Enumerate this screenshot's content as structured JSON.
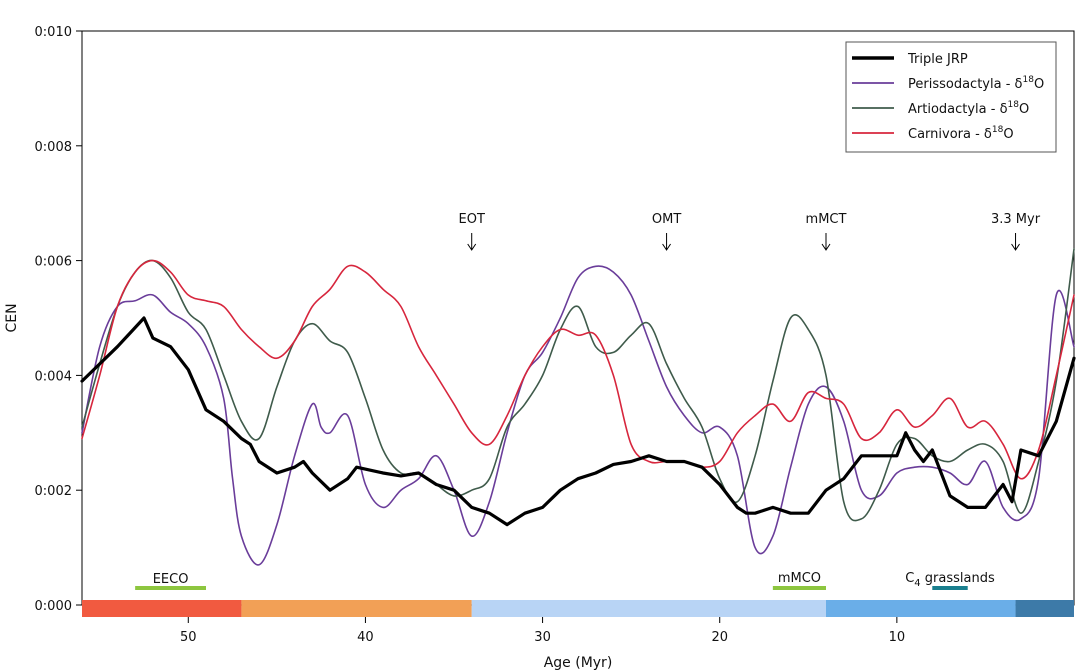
{
  "chart_data": {
    "type": "line",
    "xlabel": "Age (Myr)",
    "ylabel": "CEN",
    "xlim": [
      56,
      0
    ],
    "ylim": [
      0,
      0.01
    ],
    "x_ticks": [
      50,
      40,
      30,
      20,
      10
    ],
    "y_ticks": [
      {
        "value": 0.0,
        "label": "0:000"
      },
      {
        "value": 0.002,
        "label": "0:002"
      },
      {
        "value": 0.004,
        "label": "0:004"
      },
      {
        "value": 0.006,
        "label": "0:006"
      },
      {
        "value": 0.008,
        "label": "0:008"
      },
      {
        "value": 0.01,
        "label": "0:010"
      }
    ],
    "legend_position": "top-right",
    "series": [
      {
        "name": "Triple JRP",
        "color": "#000000",
        "x": [
          56,
          54,
          52.5,
          52,
          51,
          50,
          49,
          48,
          47,
          46.5,
          46,
          45,
          44,
          43.5,
          43,
          42,
          41,
          40.5,
          39,
          38,
          37,
          36,
          35,
          34,
          33.5,
          33,
          32,
          31,
          30,
          29,
          28,
          27,
          26,
          25,
          24,
          23,
          22,
          21,
          20,
          19,
          18.5,
          18,
          17,
          16,
          15,
          14,
          13,
          12,
          11,
          10,
          9.5,
          9,
          8.5,
          8,
          7,
          6,
          5,
          4,
          3.5,
          3,
          2,
          1,
          0
        ],
        "y": [
          0.0039,
          0.0045,
          0.005,
          0.00465,
          0.0045,
          0.0041,
          0.0034,
          0.0032,
          0.0029,
          0.0028,
          0.0025,
          0.0023,
          0.0024,
          0.0025,
          0.0023,
          0.002,
          0.0022,
          0.0024,
          0.0023,
          0.00225,
          0.0023,
          0.0021,
          0.002,
          0.0017,
          0.00165,
          0.0016,
          0.0014,
          0.0016,
          0.0017,
          0.002,
          0.0022,
          0.0023,
          0.00245,
          0.0025,
          0.0026,
          0.0025,
          0.0025,
          0.0024,
          0.0021,
          0.0017,
          0.0016,
          0.0016,
          0.0017,
          0.0016,
          0.0016,
          0.002,
          0.0022,
          0.0026,
          0.0026,
          0.0026,
          0.003,
          0.0027,
          0.0025,
          0.0027,
          0.0019,
          0.0017,
          0.0017,
          0.0021,
          0.0018,
          0.0027,
          0.0026,
          0.0032,
          0.0043
        ]
      },
      {
        "name": "Perissodactyla - δ18O",
        "color": "#6a3d9a",
        "x": [
          56,
          55,
          54,
          53,
          52,
          51,
          50,
          49,
          48,
          47.5,
          47,
          46,
          45,
          44,
          43,
          42.5,
          42,
          41,
          40,
          39,
          38,
          37,
          36,
          35,
          34,
          33,
          32,
          31,
          30,
          29,
          28,
          27,
          26,
          25,
          24,
          23,
          22,
          21,
          20,
          19,
          18,
          17,
          16,
          15,
          14,
          13,
          12,
          11,
          10,
          9,
          8,
          7,
          6,
          5,
          4,
          3,
          2,
          1,
          0
        ],
        "y": [
          0.003,
          0.0045,
          0.0052,
          0.0053,
          0.0054,
          0.0051,
          0.0049,
          0.0045,
          0.0036,
          0.0022,
          0.0012,
          0.0007,
          0.0014,
          0.0026,
          0.0035,
          0.0031,
          0.003,
          0.0033,
          0.0021,
          0.0017,
          0.002,
          0.0022,
          0.0026,
          0.002,
          0.0012,
          0.0018,
          0.003,
          0.004,
          0.0044,
          0.005,
          0.0057,
          0.0059,
          0.0058,
          0.0054,
          0.0046,
          0.0038,
          0.0033,
          0.003,
          0.0031,
          0.0026,
          0.001,
          0.0012,
          0.0024,
          0.0035,
          0.0038,
          0.0032,
          0.002,
          0.0019,
          0.0023,
          0.0024,
          0.0024,
          0.0023,
          0.0021,
          0.0025,
          0.0017,
          0.0015,
          0.0022,
          0.0054,
          0.0045
        ]
      },
      {
        "name": "Artiodactyla - δ18O",
        "color": "#3f5b4b",
        "x": [
          56,
          55,
          54,
          53,
          52,
          51,
          50,
          49,
          48,
          47,
          46,
          45,
          44,
          43,
          42,
          41,
          40,
          39,
          38,
          37,
          36,
          35,
          34,
          33,
          32,
          31,
          30,
          29,
          28,
          27,
          26,
          25,
          24,
          23,
          22,
          21,
          20,
          19,
          18,
          17,
          16,
          15,
          14,
          13,
          12,
          11,
          10,
          9,
          8,
          7,
          6,
          5,
          4,
          3,
          2,
          1,
          0
        ],
        "y": [
          0.0031,
          0.0042,
          0.0052,
          0.0058,
          0.006,
          0.0057,
          0.0051,
          0.0048,
          0.004,
          0.0032,
          0.0029,
          0.0038,
          0.0046,
          0.0049,
          0.0046,
          0.0044,
          0.0036,
          0.0027,
          0.0023,
          0.0023,
          0.0021,
          0.0019,
          0.002,
          0.0022,
          0.0031,
          0.0035,
          0.004,
          0.0048,
          0.0052,
          0.0045,
          0.0044,
          0.0047,
          0.0049,
          0.0042,
          0.0036,
          0.0031,
          0.0022,
          0.0018,
          0.0026,
          0.0039,
          0.005,
          0.0048,
          0.004,
          0.0018,
          0.0015,
          0.002,
          0.0028,
          0.0029,
          0.0026,
          0.0025,
          0.0027,
          0.0028,
          0.0025,
          0.0016,
          0.0025,
          0.0039,
          0.0062
        ]
      },
      {
        "name": "Carnivora - δ18O",
        "color": "#d7263d",
        "x": [
          56,
          55,
          54,
          53,
          52,
          51,
          50,
          49,
          48,
          47,
          46,
          45,
          44,
          43,
          42,
          41,
          40,
          39,
          38,
          37,
          36,
          35,
          34,
          33,
          32,
          31,
          30,
          29,
          28,
          27,
          26,
          25,
          24,
          23,
          22,
          21,
          20,
          19,
          18,
          17,
          16,
          15,
          14,
          13,
          12,
          11,
          10,
          9,
          8,
          7,
          6,
          5,
          4,
          3,
          2,
          1,
          0
        ],
        "y": [
          0.0029,
          0.004,
          0.0052,
          0.0058,
          0.006,
          0.0058,
          0.0054,
          0.0053,
          0.0052,
          0.0048,
          0.0045,
          0.0043,
          0.0046,
          0.0052,
          0.0055,
          0.0059,
          0.0058,
          0.0055,
          0.0052,
          0.0045,
          0.004,
          0.0035,
          0.003,
          0.0028,
          0.0033,
          0.004,
          0.0045,
          0.0048,
          0.0047,
          0.0047,
          0.004,
          0.0028,
          0.0025,
          0.0025,
          0.0025,
          0.0024,
          0.0025,
          0.003,
          0.0033,
          0.0035,
          0.0032,
          0.0037,
          0.0036,
          0.0035,
          0.0029,
          0.003,
          0.0034,
          0.0031,
          0.0033,
          0.0036,
          0.0031,
          0.0032,
          0.0028,
          0.0022,
          0.0027,
          0.004,
          0.0054
        ]
      }
    ],
    "events": [
      {
        "label": "EOT",
        "x": 34
      },
      {
        "label": "OMT",
        "x": 23
      },
      {
        "label": "mMCT",
        "x": 14
      },
      {
        "label": "3.3 Myr",
        "x": 3.3
      }
    ],
    "markers": [
      {
        "label": "EECO",
        "x_start": 53,
        "x_end": 49,
        "color": "#8dc63f"
      },
      {
        "label": "mMCO",
        "x_start": 17,
        "x_end": 14,
        "color": "#8dc63f"
      },
      {
        "label": "C4 grasslands",
        "x_start": 8,
        "x_end": 6,
        "color": "#1a7f8e"
      }
    ],
    "epoch_bands": [
      {
        "x_start": 56,
        "x_end": 47,
        "color": "#f15a40"
      },
      {
        "x_start": 47,
        "x_end": 34,
        "color": "#f2a056"
      },
      {
        "x_start": 34,
        "x_end": 14,
        "color": "#b8d4f5"
      },
      {
        "x_start": 14,
        "x_end": 3.3,
        "color": "#6aaee8"
      },
      {
        "x_start": 3.3,
        "x_end": 0,
        "color": "#3d7aa8"
      }
    ]
  }
}
